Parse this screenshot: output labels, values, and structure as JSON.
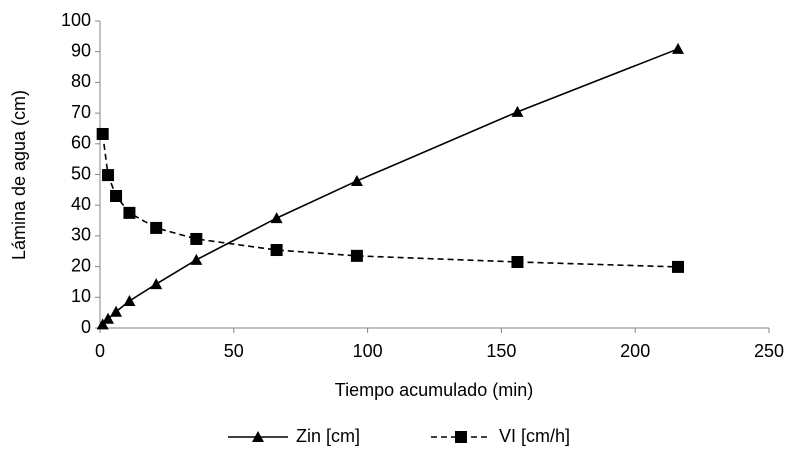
{
  "chart_data": {
    "type": "line",
    "x_label": "Tiempo acumulado (min)",
    "y_label": "Lámina de agua (cm)",
    "xlim": [
      0,
      250
    ],
    "xticks": [
      0,
      50,
      100,
      150,
      200,
      250
    ],
    "ylim": [
      0,
      100
    ],
    "yticks": [
      0,
      10,
      20,
      30,
      40,
      50,
      60,
      70,
      80,
      90,
      100
    ],
    "grid": false,
    "legend": "bottom",
    "series": [
      {
        "name": "Zin [cm]",
        "color": "#000000",
        "marker": "triangle",
        "line_style": "solid",
        "x": [
          1,
          3,
          6,
          11,
          21,
          36,
          66,
          96,
          156,
          216
        ],
        "values": [
          1.2,
          3,
          5.3,
          8.8,
          14.3,
          22.2,
          35.8,
          47.9,
          70.4,
          90.9
        ]
      },
      {
        "name": "VI [cm/h]",
        "color": "#000000",
        "marker": "square",
        "line_style": "dashed",
        "x": [
          1,
          3,
          6,
          11,
          21,
          36,
          66,
          96,
          156,
          216
        ],
        "values": [
          63.2,
          49.8,
          43,
          37.5,
          32.6,
          29,
          25.4,
          23.5,
          21.5,
          19.9
        ]
      }
    ]
  }
}
